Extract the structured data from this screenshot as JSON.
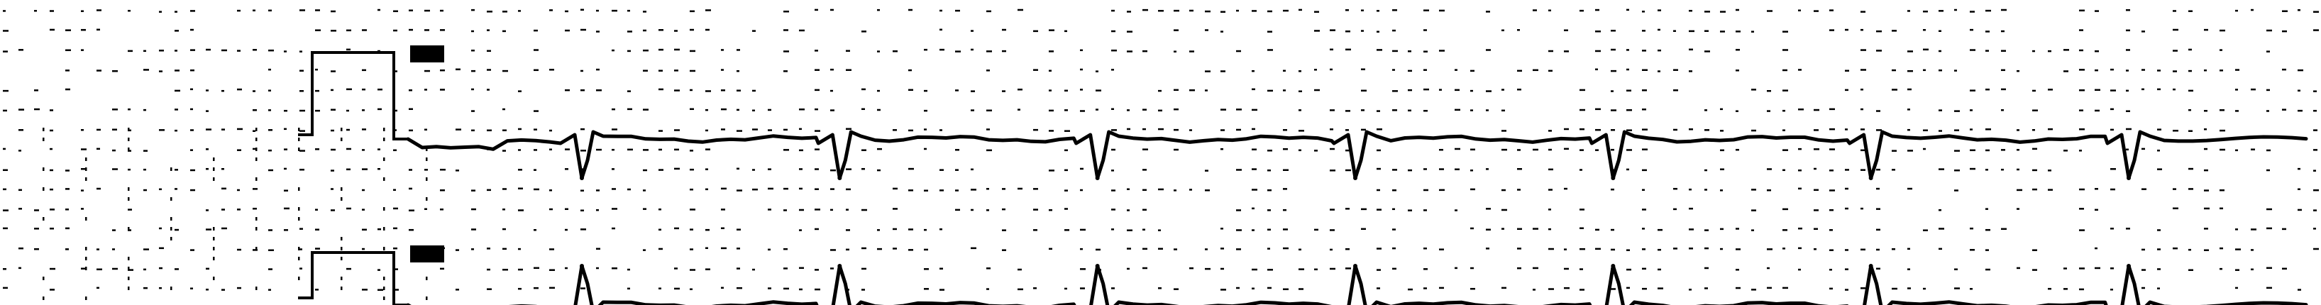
{
  "colors": {
    "background": "#ffffff",
    "trace": "#000000",
    "grid": "#000000"
  },
  "chart_data": {
    "type": "line",
    "grid": "dotted",
    "leads": [
      {
        "calibration_pulse": true,
        "beat_polarity": "negative"
      },
      {
        "calibration_pulse": true,
        "beat_polarity": "positive"
      }
    ],
    "beat_count": 7
  }
}
